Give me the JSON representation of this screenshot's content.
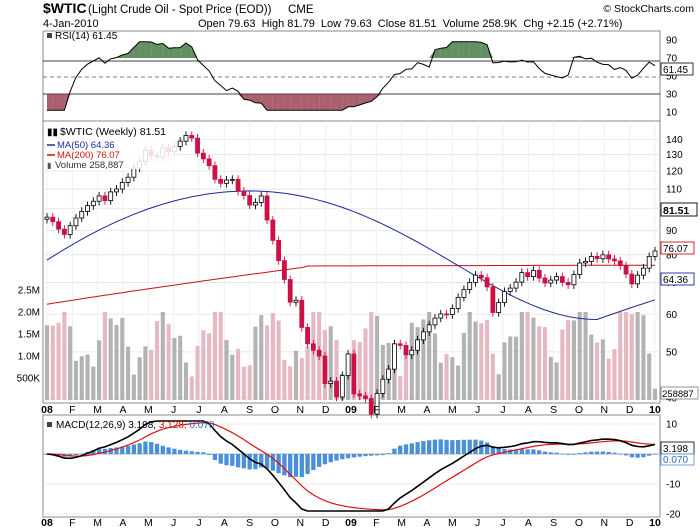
{
  "header": {
    "symbol": "$WTIC",
    "description": "(Light Crude Oil - Spot Price (EOD))",
    "exchange": "CME",
    "date": "4-Jan-2010",
    "quote_line": "Open 79.63  High 81.79  Low 79.63  Close 81.51  Volume 258.9K  Chg +2.15 (+2.71%)",
    "watermark": "© StockCharts.com"
  },
  "colors": {
    "up": "#000000",
    "down": "#cc1144",
    "ma50": "#1a2a99",
    "ma200": "#cc1111",
    "vol_up": "#b3b3b3",
    "vol_down": "#e6b8c2",
    "macd_line": "#000000",
    "signal_line": "#dd1111",
    "histogram": "#4a90d9",
    "rsi_over": "#2e6b2e",
    "rsi_under": "#8b2c3c"
  },
  "x_axis": {
    "labels": [
      "08",
      "F",
      "M",
      "A",
      "M",
      "J",
      "J",
      "A",
      "S",
      "O",
      "N",
      "D",
      "09",
      "F",
      "M",
      "A",
      "M",
      "J",
      "J",
      "A",
      "S",
      "O",
      "N",
      "D",
      "10"
    ],
    "bold": [
      "08",
      "09",
      "10"
    ]
  },
  "rsi_panel": {
    "legend": "RSI(14) 61.45",
    "ticks": [
      "90",
      "70",
      "50",
      "30",
      "10"
    ],
    "badge": "61.45"
  },
  "price_panel": {
    "legend_title": "$WTIC (Weekly) 81.51",
    "legend_ma50": "MA(50) 64.36",
    "legend_ma200": "MA(200) 76.07",
    "legend_volume": "Volume 258,887",
    "price_ticks": [
      "140",
      "130",
      "120",
      "110",
      "100",
      "90",
      "80",
      "70",
      "60",
      "50",
      "40"
    ],
    "volume_ticks": [
      "2.5M",
      "2.0M",
      "1.5M",
      "1.0M",
      "500K"
    ],
    "badge_close": "81.51",
    "badge_ma200": "76.07",
    "badge_ma50": "64.36",
    "badge_volume": "258887"
  },
  "macd_panel": {
    "legend_prefix": "MACD(12,26,9)",
    "legend_macd": "3.198,",
    "legend_signal": "3.128,",
    "legend_hist": "0.070",
    "ticks": [
      "10",
      "0",
      "-10",
      "-20"
    ],
    "badge_macd": "3.198",
    "badge_hist": "0.070"
  },
  "chart_data": {
    "type": "candlestick",
    "title": "$WTIC (Weekly)",
    "price_scale": "log",
    "price_range": [
      40,
      150
    ],
    "weeks": 106,
    "closes": [
      96.0,
      93.9,
      90.6,
      88.3,
      92.1,
      95.6,
      98.7,
      101.5,
      103.7,
      106.4,
      104.0,
      108.5,
      110.0,
      113.6,
      116.5,
      121.8,
      125.8,
      132.8,
      129.2,
      128.3,
      134.4,
      131.9,
      135.2,
      138.7,
      142.6,
      140.8,
      130.9,
      127.3,
      123.2,
      115.3,
      113.1,
      114.9,
      115.3,
      108.8,
      106.6,
      101.8,
      103.1,
      106.4,
      94.7,
      85.8,
      77.8,
      71.0,
      63.6,
      64.2,
      56.3,
      52.0,
      50.4,
      49.0,
      42.9,
      43.4,
      40.2,
      44.6,
      49.5,
      40.8,
      40.4,
      39.9,
      37.0,
      40.9,
      43.8,
      46.0,
      52.0,
      51.6,
      49.3,
      50.4,
      53.0,
      55.1,
      57.0,
      58.9,
      60.1,
      59.9,
      61.7,
      65.1,
      67.6,
      70.0,
      72.5,
      71.6,
      68.5,
      60.5,
      63.5,
      67.0,
      68.1,
      70.1,
      73.4,
      72.0,
      74.2,
      71.5,
      69.8,
      70.8,
      72.0,
      70.0,
      69.2,
      72.7,
      76.9,
      77.5,
      79.4,
      78.5,
      80.0,
      78.4,
      77.7,
      75.9,
      72.9,
      69.5,
      72.5,
      75.0,
      79.4,
      81.51
    ],
    "ma50_end": 64.36,
    "ma200_end": 76.07,
    "volume_range": [
      0,
      2500000
    ],
    "last_volume": 258887,
    "rsi_last": 61.45,
    "macd_last": 3.198,
    "signal_last": 3.128,
    "histogram_last": 0.07,
    "macd_range": [
      -20,
      12
    ]
  }
}
